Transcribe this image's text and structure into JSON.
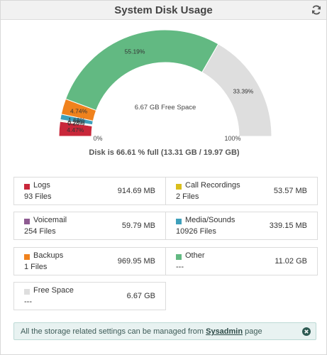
{
  "panel": {
    "title": "System Disk Usage"
  },
  "gauge": {
    "center_text": "6.67 GB Free Space",
    "min_label": "0%",
    "max_label": "100%",
    "summary": "Disk is 66.61 % full (13.31 GB / 19.97 GB)",
    "segments": [
      {
        "name": "Logs",
        "percent": 4.47,
        "color": "#c9273a",
        "label": "4.47%"
      },
      {
        "name": "Call Recordings",
        "percent": 0.26,
        "color": "#d9be1c",
        "label": "0.26%"
      },
      {
        "name": "Voicemail",
        "percent": 0.28,
        "color": "#8e5b91",
        "label": "0.28%"
      },
      {
        "name": "Media/Sounds",
        "percent": 1.68,
        "color": "#3ea0bb",
        "label": "1.68%"
      },
      {
        "name": "Backups",
        "percent": 4.74,
        "color": "#f0821d",
        "label": "4.74%"
      },
      {
        "name": "Other",
        "percent": 55.19,
        "color": "#62b982",
        "label": "55.19%"
      },
      {
        "name": "Free Space",
        "percent": 33.39,
        "color": "#dedede",
        "label": "33.39%"
      }
    ]
  },
  "cards": {
    "logs": {
      "name": "Logs",
      "count": "93 Files",
      "size": "914.69 MB",
      "color": "#c9273a"
    },
    "call_recordings": {
      "name": "Call Recordings",
      "count": "2 Files",
      "size": "53.57 MB",
      "color": "#d9be1c"
    },
    "voicemail": {
      "name": "Voicemail",
      "count": "254 Files",
      "size": "59.79 MB",
      "color": "#8e5b91"
    },
    "media_sounds": {
      "name": "Media/Sounds",
      "count": "10926 Files",
      "size": "339.15 MB",
      "color": "#3ea0bb"
    },
    "backups": {
      "name": "Backups",
      "count": "1 Files",
      "size": "969.95 MB",
      "color": "#f0821d"
    },
    "other": {
      "name": "Other",
      "count": "---",
      "size": "11.02 GB",
      "color": "#62b982"
    },
    "free_space": {
      "name": "Free Space",
      "count": "---",
      "size": "6.67 GB",
      "color": "#dedede"
    }
  },
  "notice": {
    "text_before": "All the storage related settings can be managed from ",
    "link": "Sysadmin",
    "text_after": " page"
  }
}
